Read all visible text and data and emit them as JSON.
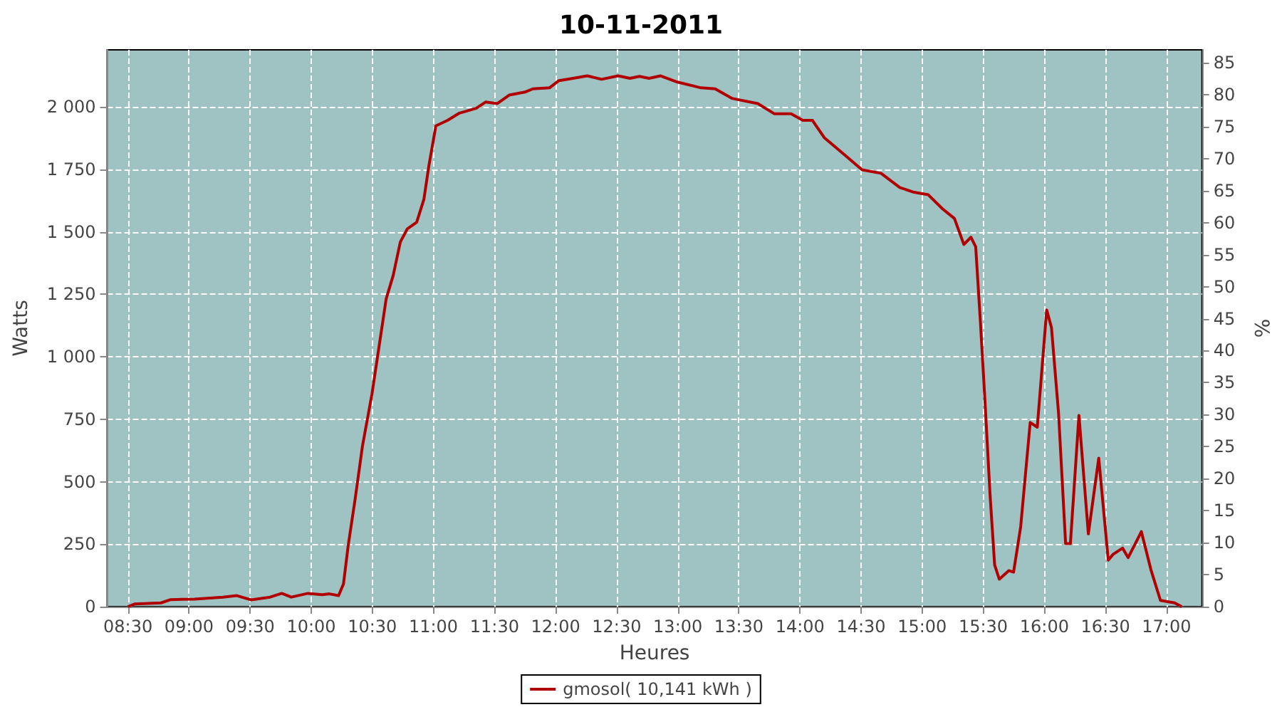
{
  "chart_data": {
    "type": "line",
    "title": "10-11-2011",
    "xlabel": "Heures",
    "ylabel": "Watts",
    "y2label": "%",
    "xlim": [
      8.33,
      17.29
    ],
    "xticks": [
      {
        "value": 8.5,
        "label": "08:30"
      },
      {
        "value": 9,
        "label": "09:00"
      },
      {
        "value": 9.5,
        "label": "09:30"
      },
      {
        "value": 10,
        "label": "10:00"
      },
      {
        "value": 10.5,
        "label": "10:30"
      },
      {
        "value": 11,
        "label": "11:00"
      },
      {
        "value": 11.5,
        "label": "11:30"
      },
      {
        "value": 12,
        "label": "12:00"
      },
      {
        "value": 12.5,
        "label": "12:30"
      },
      {
        "value": 13,
        "label": "13:00"
      },
      {
        "value": 13.5,
        "label": "13:30"
      },
      {
        "value": 14,
        "label": "14:00"
      },
      {
        "value": 14.5,
        "label": "14:30"
      },
      {
        "value": 15,
        "label": "15:00"
      },
      {
        "value": 15.5,
        "label": "15:30"
      },
      {
        "value": 16,
        "label": "16:00"
      },
      {
        "value": 16.5,
        "label": "16:30"
      },
      {
        "value": 17,
        "label": "17:00"
      }
    ],
    "ylim": [
      0,
      2228
    ],
    "yticks": [
      0,
      250,
      500,
      750,
      {
        "value": 1000,
        "label": "1 000"
      },
      {
        "value": 1250,
        "label": "1 250"
      },
      {
        "value": 1500,
        "label": "1 500"
      },
      {
        "value": 1750,
        "label": "1 750"
      },
      {
        "value": 2000,
        "label": "2 000"
      }
    ],
    "y2lim": [
      0,
      87
    ],
    "y2ticks": [
      0,
      5,
      10,
      15,
      20,
      25,
      30,
      35,
      40,
      45,
      50,
      55,
      60,
      65,
      70,
      75,
      80,
      85
    ],
    "grid": true,
    "legend": "bottom",
    "marker": "none",
    "line_style": "solid",
    "series": [
      {
        "name": "gmosol( 10,141 kWh )",
        "color": "#b00000",
        "x": [
          8.5,
          8.558,
          8.771,
          8.849,
          9.043,
          9.276,
          9.392,
          9.508,
          9.663,
          9.759,
          9.837,
          9.973,
          10.09,
          10.148,
          10.224,
          10.264,
          10.302,
          10.36,
          10.419,
          10.497,
          10.555,
          10.613,
          10.671,
          10.729,
          10.787,
          10.863,
          10.922,
          10.962,
          11.02,
          11.116,
          11.213,
          11.349,
          11.427,
          11.523,
          11.62,
          11.756,
          11.814,
          11.95,
          12.027,
          12.143,
          12.259,
          12.376,
          12.512,
          12.608,
          12.686,
          12.764,
          12.86,
          12.997,
          13.19,
          13.306,
          13.442,
          13.655,
          13.791,
          13.927,
          14.023,
          14.101,
          14.198,
          14.372,
          14.508,
          14.663,
          14.817,
          14.934,
          15.05,
          15.166,
          15.264,
          15.341,
          15.399,
          15.438,
          15.477,
          15.515,
          15.555,
          15.593,
          15.631,
          15.709,
          15.748,
          15.806,
          15.884,
          15.942,
          16.019,
          16.058,
          16.116,
          16.174,
          16.213,
          16.283,
          16.36,
          16.445,
          16.523,
          16.562,
          16.64,
          16.686,
          16.794,
          16.872,
          16.95,
          17.066,
          17.124
        ],
        "values": [
          0,
          11,
          15,
          28,
          30,
          38,
          44,
          27,
          38,
          53,
          38,
          53,
          48,
          51,
          44,
          91,
          243,
          433,
          642,
          851,
          1041,
          1231,
          1326,
          1459,
          1512,
          1538,
          1630,
          1762,
          1924,
          1946,
          1975,
          1994,
          2019,
          2013,
          2047,
          2060,
          2072,
          2076,
          2105,
          2114,
          2124,
          2110,
          2124,
          2114,
          2122,
          2114,
          2124,
          2099,
          2076,
          2072,
          2034,
          2013,
          1972,
          1972,
          1946,
          1946,
          1877,
          1805,
          1748,
          1734,
          1677,
          1658,
          1648,
          1592,
          1553,
          1449,
          1478,
          1440,
          1136,
          813,
          452,
          167,
          110,
          144,
          138,
          319,
          737,
          718,
          1187,
          1117,
          775,
          252,
          252,
          765,
          291,
          594,
          186,
          209,
          234,
          196,
          300,
          148,
          25,
          15,
          0
        ]
      }
    ]
  }
}
